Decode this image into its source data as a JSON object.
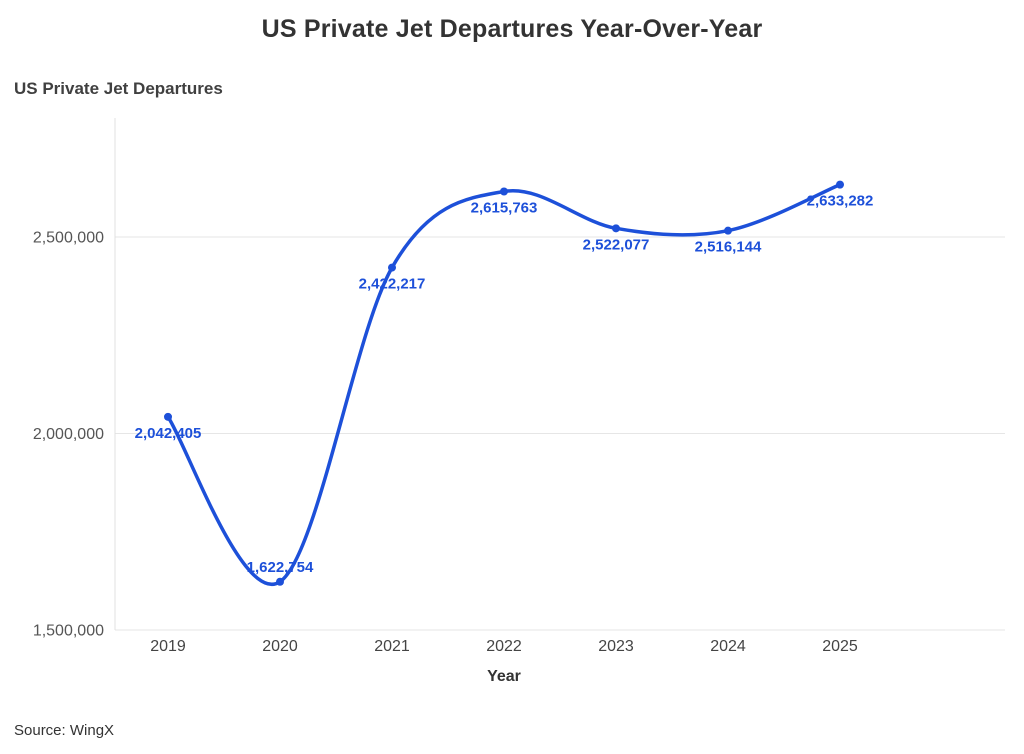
{
  "page": {
    "background": "#ffffff",
    "source": "Source: WingX"
  },
  "chart_data": {
    "type": "line",
    "title": "US Private Jet Departures Year-Over-Year",
    "ylabel": "US Private Jet Departures",
    "xlabel": "Year",
    "categories": [
      "2019",
      "2020",
      "2021",
      "2022",
      "2023",
      "2024",
      "2025"
    ],
    "values": [
      2042405,
      1622754,
      2422217,
      2615763,
      2522077,
      2516144,
      2633282
    ],
    "point_labels": [
      "2,042,405",
      "1,622,754",
      "2,422,217",
      "2,615,763",
      "2,522,077",
      "2,516,144",
      "2,633,282"
    ],
    "yticks": [
      {
        "value": 2500000,
        "label": "2,500,000"
      },
      {
        "value": 2000000,
        "label": "2,000,000"
      },
      {
        "value": 1500000,
        "label": "1,500,000"
      }
    ],
    "ylim": [
      1500000,
      2750000
    ],
    "grid": true,
    "legend": false,
    "smooth": true,
    "line_color": "#1d50d9",
    "point_color": "#1d50d9",
    "label_color": "#1d50d9",
    "grid_color": "#e6e6e6",
    "axis_line_color": "#e0e0e0",
    "ytick_text_color": "#555555",
    "xtick_text_color": "#444444"
  }
}
